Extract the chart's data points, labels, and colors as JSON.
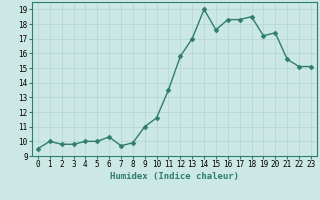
{
  "x": [
    0,
    1,
    2,
    3,
    4,
    5,
    6,
    7,
    8,
    9,
    10,
    11,
    12,
    13,
    14,
    15,
    16,
    17,
    18,
    19,
    20,
    21,
    22,
    23
  ],
  "y": [
    9.5,
    10.0,
    9.8,
    9.8,
    10.0,
    10.0,
    10.3,
    9.7,
    9.9,
    11.0,
    11.6,
    13.5,
    15.8,
    17.0,
    19.0,
    17.6,
    18.3,
    18.3,
    18.5,
    17.2,
    17.4,
    15.6,
    15.1,
    15.1
  ],
  "line_color": "#2e7d6e",
  "marker_color": "#2e7d6e",
  "bg_color": "#cce8e5",
  "grid_color": "#b8d8d4",
  "xlabel": "Humidex (Indice chaleur)",
  "xlim": [
    -0.5,
    23.5
  ],
  "ylim": [
    9,
    19.5
  ],
  "yticks": [
    9,
    10,
    11,
    12,
    13,
    14,
    15,
    16,
    17,
    18,
    19
  ],
  "xticks": [
    0,
    1,
    2,
    3,
    4,
    5,
    6,
    7,
    8,
    9,
    10,
    11,
    12,
    13,
    14,
    15,
    16,
    17,
    18,
    19,
    20,
    21,
    22,
    23
  ],
  "xlabel_fontsize": 6.5,
  "tick_fontsize": 5.5,
  "linewidth": 1.0,
  "markersize": 2.5
}
